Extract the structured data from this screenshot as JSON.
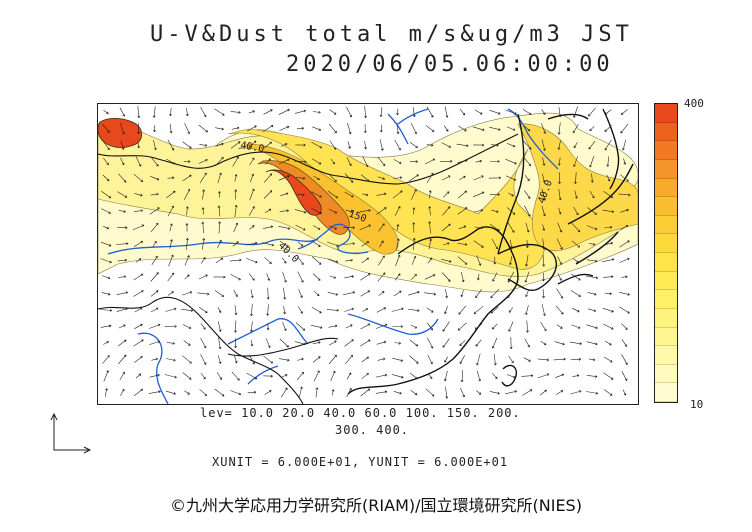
{
  "header": {
    "title_line1": "U-V&Dust total m/s&ug/m3 JST",
    "title_line2": "2020/06/05.06:00:00"
  },
  "colorbar": {
    "max_label": "400",
    "min_label": "10",
    "colors_top_to_bottom": [
      "#e8481c",
      "#ee6220",
      "#f27a22",
      "#f59428",
      "#f7aa2c",
      "#f9bd31",
      "#fbcd35",
      "#fdda3b",
      "#fee446",
      "#feeb55",
      "#fff067",
      "#fff47b",
      "#fff692",
      "#fff8a8",
      "#fffabd",
      "#fffcd2"
    ]
  },
  "legend": {
    "lev_line1": "lev= 10.0 20.0 40.0 60.0 100. 150. 200.",
    "lev_line2": "300. 400.",
    "units_line": "XUNIT = 6.000E+01, YUNIT = 6.000E+01"
  },
  "contour_labels": [
    "40.0",
    "40.0",
    "150",
    "40.0"
  ],
  "colors": {
    "coast": "#111111",
    "river": "#1f5fd6",
    "arrow": "#222222",
    "dust_high": "#e8481c",
    "dust_low": "#fffcd2"
  },
  "footer": {
    "copyright": "©九州大学応用力学研究所(RIAM)/国立環境研究所(NIES)"
  }
}
